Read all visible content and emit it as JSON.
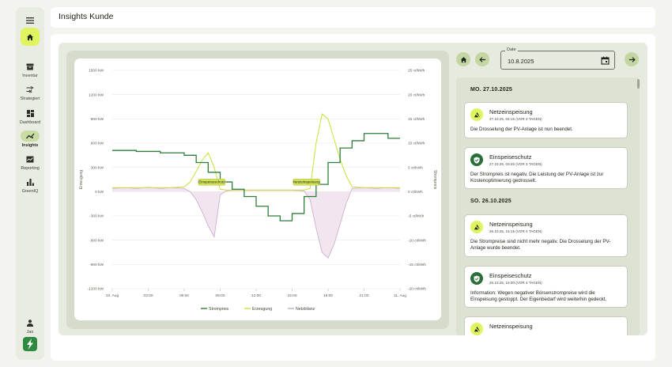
{
  "app": {
    "page_title": "Insights Kunde"
  },
  "sidebar": {
    "items": [
      {
        "label": "Inventar"
      },
      {
        "label": "Strategien"
      },
      {
        "label": "Dashboard"
      },
      {
        "label": "Insights"
      },
      {
        "label": "Reporting"
      },
      {
        "label": "GreenIQ"
      }
    ],
    "user": "Jan"
  },
  "date_field": {
    "label": "Date",
    "value": "10.8.2025"
  },
  "events": {
    "days": [
      {
        "heading": "MO. 27.10.2025"
      },
      {
        "heading": "SO. 26.10.2025"
      }
    ],
    "items": [
      {
        "title": "Netzeinspeisung",
        "time": "27.10.25, 04:15 (VOR 3 TAGEN)",
        "text": "Die Drosselung der PV-Anlage ist nun beendet."
      },
      {
        "title": "Einspeiseschutz",
        "time": "27.10.25, 03:45 (VOR 3 TAGEN)",
        "text": "Der Strompreis ist negativ. Die Leistung der PV-Anlage ist zur Kostenoptimierung gedrosselt."
      },
      {
        "title": "Netzeinspeisung",
        "time": "26.10.25, 16:15 (VOR 4 TAGEN)",
        "text": "Die Strompreise sind nicht mehr negativ. Die Drosselung der PV-Anlage wurde beendet."
      },
      {
        "title": "Einspeiseschutz",
        "time": "26.10.25, 16:00 (VOR 4 TAGEN)",
        "text": "Information: Wegen negativer Börsenstrompreise wird die Einspeisung gestoppt. Der Eigenbedarf wird weiterhin gedeckt."
      },
      {
        "title": "Netzeinspeisung"
      }
    ]
  },
  "colors": {
    "strompreis": "#2e7d3a",
    "erzeugung": "#c9e03a",
    "netzbilanz": "#c9a8c4",
    "accent": "#dff45e"
  },
  "chart_data": {
    "type": "line",
    "x_ticks": [
      "10. Aug",
      "03:00",
      "06:00",
      "09:00",
      "12:00",
      "15:00",
      "18:00",
      "21:00",
      "11. Aug"
    ],
    "x_range_hours": [
      0,
      24
    ],
    "y_left": {
      "label": "Erzeugung",
      "unit": "kW",
      "ticks": [
        "1500 kW",
        "1200 kW",
        "900 kW",
        "600 kW",
        "300 kW",
        "0 kW",
        "-300 kW",
        "-600 kW",
        "-900 kW",
        "-1200 kW"
      ],
      "range": [
        -1200,
        1500
      ]
    },
    "y_right": {
      "label": "Strompreis",
      "unit": "ct/kWh",
      "ticks": [
        "25 ct/kWh",
        "20 ct/kWh",
        "15 ct/kWh",
        "10 ct/kWh",
        "5 ct/kWh",
        "0 ct/kWh",
        "-5 ct/kWh",
        "-10 ct/kWh",
        "-15 ct/kWh",
        "-20 ct/kWh"
      ],
      "range": [
        -20,
        25
      ]
    },
    "series": [
      {
        "name": "Strompreis",
        "axis": "right",
        "step": true,
        "x": [
          0,
          1,
          2,
          3,
          4,
          5,
          6,
          7,
          8,
          9,
          10,
          11,
          12,
          13,
          14,
          15,
          16,
          17,
          18,
          19,
          20,
          21,
          22,
          23,
          24
        ],
        "y": [
          8.5,
          8.5,
          8.3,
          8.3,
          8.0,
          8.0,
          7.5,
          6.0,
          4.0,
          2.0,
          0.5,
          -1.0,
          -3.0,
          -5.0,
          -6.0,
          -4.5,
          -1.0,
          1.5,
          6.0,
          9.0,
          10.5,
          12.0,
          12.0,
          11.0,
          11.0
        ]
      },
      {
        "name": "Erzeugung",
        "axis": "left",
        "x": [
          0,
          1,
          2,
          3,
          4,
          5,
          6,
          6.5,
          7,
          7.5,
          8,
          8.5,
          9,
          9.5,
          10,
          10.5,
          11,
          12,
          13,
          14,
          15,
          16,
          16.5,
          17,
          17.5,
          18,
          18.5,
          19,
          19.5,
          20,
          21,
          22,
          23,
          24
        ],
        "y": [
          50,
          50,
          50,
          50,
          50,
          50,
          60,
          120,
          250,
          390,
          480,
          300,
          30,
          20,
          20,
          20,
          20,
          20,
          20,
          20,
          20,
          20,
          40,
          600,
          960,
          900,
          650,
          400,
          200,
          60,
          50,
          50,
          50,
          50
        ]
      },
      {
        "name": "Netzbilanz",
        "axis": "left",
        "x": [
          0,
          1,
          2,
          3,
          4,
          5,
          6,
          6.5,
          7,
          7.5,
          8,
          8.5,
          9,
          9.5,
          10,
          11,
          12,
          13,
          14,
          15,
          16,
          16.5,
          17,
          17.5,
          18,
          18.5,
          19,
          19.5,
          20,
          21,
          22,
          23,
          24
        ],
        "y": [
          40,
          50,
          40,
          55,
          40,
          50,
          40,
          0,
          -100,
          -250,
          -420,
          -560,
          -40,
          10,
          20,
          20,
          20,
          20,
          20,
          20,
          10,
          -100,
          -450,
          -750,
          -820,
          -650,
          -400,
          -150,
          40,
          50,
          40,
          50,
          40
        ]
      }
    ],
    "annotations": [
      {
        "label": "Einspeiseschutz",
        "x": 8.3
      },
      {
        "label": "Netzeinspeisung",
        "x": 16.2
      }
    ],
    "legend": {
      "placement": "bottom",
      "entries": [
        "Strompreis",
        "Erzeugung",
        "Netzbilanz"
      ]
    },
    "grid": true
  }
}
